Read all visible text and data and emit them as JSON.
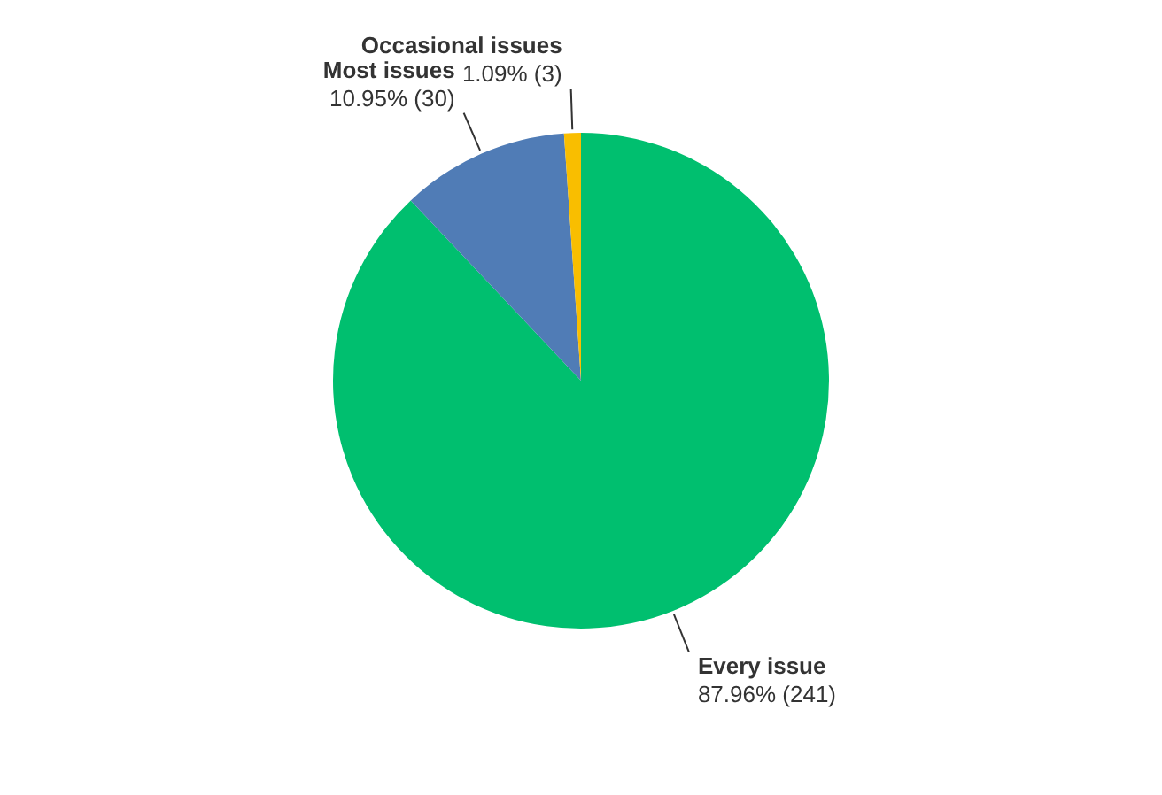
{
  "chart_data": {
    "type": "pie",
    "categories": [
      "Every issue",
      "Most issues",
      "Occasional issues"
    ],
    "values": [
      241,
      30,
      3
    ],
    "colors": [
      "#00bf6f",
      "#507cb6",
      "#f9be00"
    ],
    "value_labels": [
      "87.96% (241)",
      "10.95% (30)",
      "1.09% (3)"
    ],
    "legend": false
  }
}
